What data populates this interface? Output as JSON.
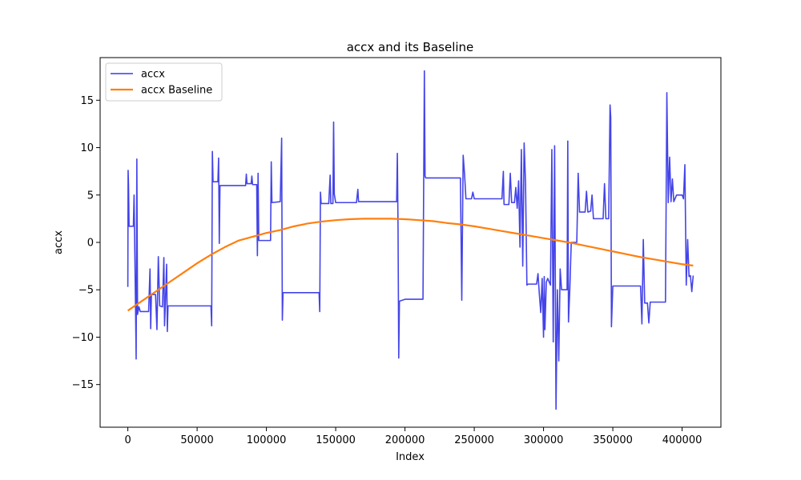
{
  "chart_data": {
    "type": "line",
    "title": "accx and its Baseline",
    "xlabel": "Index",
    "ylabel": "accx",
    "xlim": [
      -20000,
      428000
    ],
    "ylim": [
      -19.5,
      19.5
    ],
    "x_ticks": [
      0,
      50000,
      100000,
      150000,
      200000,
      250000,
      300000,
      350000,
      400000
    ],
    "y_ticks": [
      -15,
      -10,
      -5,
      0,
      5,
      10,
      15
    ],
    "grid": false,
    "legend_position": "top-left",
    "series": [
      {
        "name": "accx",
        "color": "#3a3ae8",
        "style": "thin",
        "points": [
          [
            0,
            -4.7
          ],
          [
            200,
            7.6
          ],
          [
            500,
            6.0
          ],
          [
            900,
            1.7
          ],
          [
            4000,
            1.7
          ],
          [
            4500,
            5.0
          ],
          [
            5500,
            -6.2
          ],
          [
            6000,
            -12.3
          ],
          [
            6500,
            8.8
          ],
          [
            7000,
            -7.6
          ],
          [
            8000,
            -6.8
          ],
          [
            9000,
            -7.3
          ],
          [
            15000,
            -7.3
          ],
          [
            16000,
            -2.8
          ],
          [
            16500,
            -9.1
          ],
          [
            17000,
            -5.5
          ],
          [
            20000,
            -5.5
          ],
          [
            21000,
            -9.2
          ],
          [
            22000,
            -1.5
          ],
          [
            23000,
            -6.7
          ],
          [
            25000,
            -6.8
          ],
          [
            26000,
            -1.6
          ],
          [
            26500,
            -8.8
          ],
          [
            27000,
            -6.8
          ],
          [
            28000,
            -2.3
          ],
          [
            28500,
            -9.4
          ],
          [
            29000,
            -6.7
          ],
          [
            40000,
            -6.7
          ],
          [
            60000,
            -6.7
          ],
          [
            60500,
            -8.8
          ],
          [
            61000,
            9.6
          ],
          [
            61500,
            6.4
          ],
          [
            65000,
            6.4
          ],
          [
            65500,
            8.9
          ],
          [
            66000,
            -0.1
          ],
          [
            66500,
            6.0
          ],
          [
            85000,
            6.0
          ],
          [
            85500,
            7.2
          ],
          [
            86000,
            6.2
          ],
          [
            89000,
            6.2
          ],
          [
            89500,
            7.0
          ],
          [
            90000,
            6.1
          ],
          [
            93000,
            6.1
          ],
          [
            93500,
            -1.4
          ],
          [
            94000,
            7.3
          ],
          [
            94500,
            0.2
          ],
          [
            100000,
            0.2
          ],
          [
            103000,
            0.2
          ],
          [
            103500,
            8.5
          ],
          [
            104000,
            4.2
          ],
          [
            110000,
            4.3
          ],
          [
            111000,
            11.0
          ],
          [
            111500,
            -8.2
          ],
          [
            112000,
            -5.3
          ],
          [
            120000,
            -5.3
          ],
          [
            138000,
            -5.3
          ],
          [
            138500,
            -7.3
          ],
          [
            139000,
            5.3
          ],
          [
            139500,
            4.1
          ],
          [
            145000,
            4.1
          ],
          [
            146000,
            7.1
          ],
          [
            146500,
            4.1
          ],
          [
            148000,
            4.1
          ],
          [
            148500,
            12.7
          ],
          [
            149000,
            5.1
          ],
          [
            150000,
            4.2
          ],
          [
            165000,
            4.2
          ],
          [
            166000,
            5.6
          ],
          [
            166500,
            4.3
          ],
          [
            175000,
            4.3
          ],
          [
            194000,
            4.3
          ],
          [
            194500,
            9.4
          ],
          [
            195000,
            1.5
          ],
          [
            195500,
            -12.2
          ],
          [
            196000,
            -6.2
          ],
          [
            200000,
            -6.0
          ],
          [
            213000,
            -6.0
          ],
          [
            214000,
            18.1
          ],
          [
            214500,
            7.0
          ],
          [
            215000,
            6.8
          ],
          [
            225000,
            6.8
          ],
          [
            240000,
            6.8
          ],
          [
            241000,
            -6.1
          ],
          [
            242000,
            9.2
          ],
          [
            243000,
            7.2
          ],
          [
            244000,
            4.6
          ],
          [
            248000,
            4.6
          ],
          [
            249000,
            5.3
          ],
          [
            250000,
            4.6
          ],
          [
            270000,
            4.6
          ],
          [
            271000,
            7.5
          ],
          [
            271500,
            4.0
          ],
          [
            275000,
            4.0
          ],
          [
            276000,
            7.3
          ],
          [
            277000,
            4.2
          ],
          [
            279000,
            4.2
          ],
          [
            280000,
            5.8
          ],
          [
            281000,
            3.6
          ],
          [
            282000,
            6.5
          ],
          [
            283000,
            -0.5
          ],
          [
            284000,
            9.8
          ],
          [
            285000,
            -2.5
          ],
          [
            286000,
            10.5
          ],
          [
            287000,
            6.3
          ],
          [
            288000,
            -4.5
          ],
          [
            289000,
            -4.4
          ],
          [
            295000,
            -4.4
          ],
          [
            296000,
            -3.3
          ],
          [
            297000,
            -5.5
          ],
          [
            298000,
            -7.4
          ],
          [
            299000,
            -3.8
          ],
          [
            300000,
            -10.0
          ],
          [
            300500,
            -3.6
          ],
          [
            301000,
            -9.2
          ],
          [
            302000,
            -4.2
          ],
          [
            303000,
            -3.8
          ],
          [
            305000,
            -4.5
          ],
          [
            306000,
            9.8
          ],
          [
            307000,
            -10.5
          ],
          [
            308000,
            10.2
          ],
          [
            309000,
            -17.6
          ],
          [
            310000,
            -5.0
          ],
          [
            311000,
            -12.5
          ],
          [
            312000,
            -2.8
          ],
          [
            313000,
            -5.0
          ],
          [
            317000,
            -5.0
          ],
          [
            317500,
            10.7
          ],
          [
            318000,
            -8.4
          ],
          [
            319000,
            -4.8
          ],
          [
            320000,
            0.0
          ],
          [
            324000,
            0.0
          ],
          [
            325000,
            7.3
          ],
          [
            326000,
            3.2
          ],
          [
            330000,
            3.2
          ],
          [
            331000,
            5.4
          ],
          [
            332000,
            3.2
          ],
          [
            334000,
            3.3
          ],
          [
            335000,
            5.0
          ],
          [
            336000,
            2.5
          ],
          [
            340000,
            2.5
          ],
          [
            343000,
            2.5
          ],
          [
            344000,
            6.2
          ],
          [
            345000,
            2.5
          ],
          [
            347000,
            2.5
          ],
          [
            348000,
            14.5
          ],
          [
            348500,
            13.2
          ],
          [
            349000,
            -8.9
          ],
          [
            350000,
            -4.6
          ],
          [
            355000,
            -4.6
          ],
          [
            370000,
            -4.6
          ],
          [
            371000,
            -8.6
          ],
          [
            372000,
            0.3
          ],
          [
            373000,
            -6.4
          ],
          [
            375000,
            -6.4
          ],
          [
            376000,
            -8.5
          ],
          [
            377000,
            -6.3
          ],
          [
            385000,
            -6.3
          ],
          [
            388000,
            -6.3
          ],
          [
            389000,
            15.8
          ],
          [
            390000,
            4.2
          ],
          [
            391000,
            9.0
          ],
          [
            392000,
            4.3
          ],
          [
            393000,
            6.7
          ],
          [
            394000,
            4.3
          ],
          [
            396000,
            5.0
          ],
          [
            400000,
            5.0
          ],
          [
            401000,
            4.6
          ],
          [
            402000,
            8.2
          ],
          [
            403000,
            -4.5
          ],
          [
            404000,
            0.3
          ],
          [
            405000,
            -3.6
          ],
          [
            406000,
            -3.5
          ],
          [
            407000,
            -5.2
          ],
          [
            408000,
            -3.5
          ]
        ]
      },
      {
        "name": "accx Baseline",
        "color": "#ff7f0e",
        "style": "thick",
        "points": [
          [
            0,
            -7.2
          ],
          [
            10000,
            -6.2
          ],
          [
            20000,
            -5.2
          ],
          [
            30000,
            -4.2
          ],
          [
            40000,
            -3.2
          ],
          [
            50000,
            -2.2
          ],
          [
            60000,
            -1.3
          ],
          [
            70000,
            -0.5
          ],
          [
            80000,
            0.2
          ],
          [
            90000,
            0.6
          ],
          [
            100000,
            1.0
          ],
          [
            110000,
            1.3
          ],
          [
            120000,
            1.7
          ],
          [
            130000,
            2.0
          ],
          [
            140000,
            2.2
          ],
          [
            150000,
            2.35
          ],
          [
            160000,
            2.45
          ],
          [
            170000,
            2.5
          ],
          [
            180000,
            2.5
          ],
          [
            190000,
            2.5
          ],
          [
            200000,
            2.45
          ],
          [
            210000,
            2.35
          ],
          [
            220000,
            2.25
          ],
          [
            230000,
            2.05
          ],
          [
            240000,
            1.9
          ],
          [
            250000,
            1.7
          ],
          [
            260000,
            1.45
          ],
          [
            270000,
            1.2
          ],
          [
            280000,
            0.95
          ],
          [
            290000,
            0.7
          ],
          [
            300000,
            0.45
          ],
          [
            310000,
            0.2
          ],
          [
            320000,
            -0.05
          ],
          [
            330000,
            -0.35
          ],
          [
            340000,
            -0.65
          ],
          [
            350000,
            -0.95
          ],
          [
            360000,
            -1.25
          ],
          [
            370000,
            -1.55
          ],
          [
            380000,
            -1.8
          ],
          [
            390000,
            -2.05
          ],
          [
            400000,
            -2.3
          ],
          [
            408000,
            -2.45
          ]
        ]
      }
    ]
  }
}
